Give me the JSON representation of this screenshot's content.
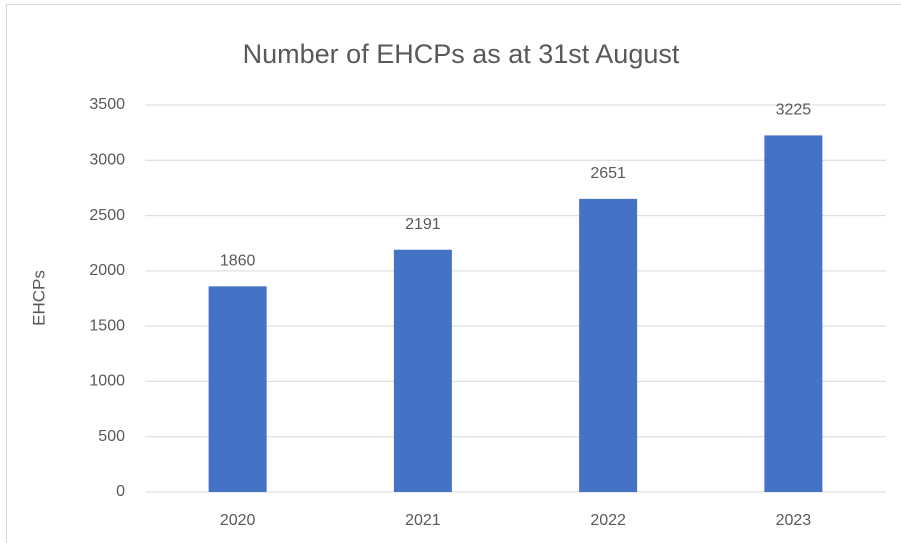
{
  "chart_data": {
    "type": "bar",
    "title": "Number of EHCPs as at 31st August",
    "y_label": "EHCPs",
    "categories": [
      "2020",
      "2021",
      "2022",
      "2023"
    ],
    "values": [
      1860,
      2191,
      2651,
      3225
    ],
    "color": "#4472c4",
    "ylim": [
      0,
      3500
    ],
    "yticks": [
      0,
      500,
      1000,
      1500,
      2000,
      2500,
      3000,
      3500
    ],
    "grid": true
  }
}
